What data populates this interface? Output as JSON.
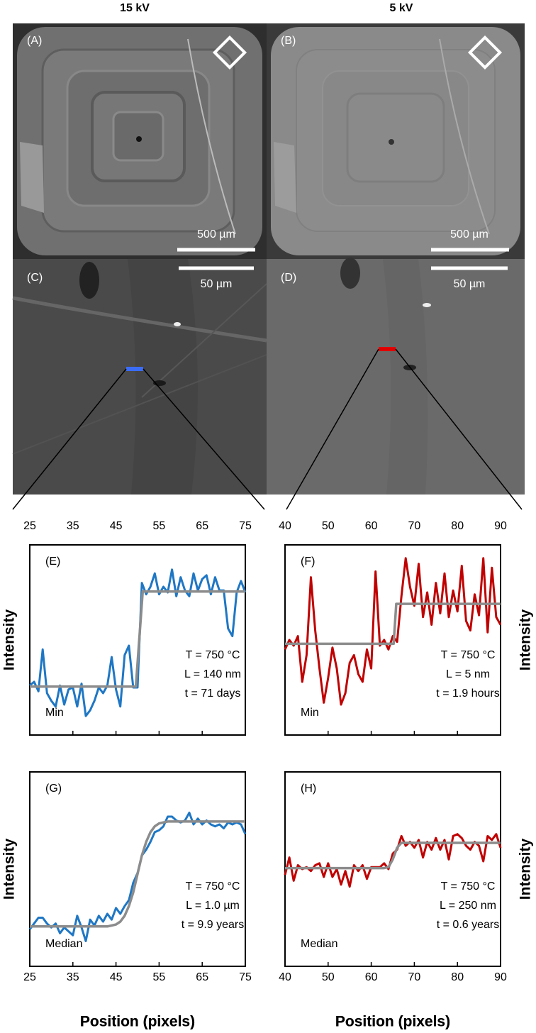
{
  "figure": {
    "column_titles": [
      "15 kV",
      "5 kV"
    ]
  },
  "images": [
    {
      "panel": "(A)",
      "scale_bar": "500 µm"
    },
    {
      "panel": "(B)",
      "scale_bar": "500 µm"
    },
    {
      "panel": "(C)",
      "scale_bar": "50 µm"
    },
    {
      "panel": "(D)",
      "scale_bar": "50 µm"
    }
  ],
  "chart_data": [
    {
      "type": "line",
      "panel": "(E)",
      "xlabel": "Position (pixels)",
      "ylabel": "Intensity",
      "method": "Min",
      "annotations": [
        "T = 750 °C",
        "L = 140 nm",
        "t = 71 days"
      ],
      "xlim": [
        25,
        75
      ],
      "xticks": [
        25,
        35,
        45,
        55,
        65,
        75
      ],
      "ylim": [
        0,
        10
      ],
      "xaxis_side": "top",
      "ylabel_side": "left",
      "x": [
        25,
        26,
        27,
        28,
        29,
        30,
        31,
        32,
        33,
        34,
        35,
        36,
        37,
        38,
        39,
        40,
        41,
        42,
        43,
        44,
        45,
        46,
        47,
        48,
        49,
        50,
        51,
        52,
        53,
        54,
        55,
        56,
        57,
        58,
        59,
        60,
        61,
        62,
        63,
        64,
        65,
        66,
        67,
        68,
        69,
        70,
        71,
        72,
        73,
        74,
        75
      ],
      "series": [
        {
          "color": "#1f77c4",
          "values": [
            2.6,
            2.8,
            2.3,
            4.5,
            2.2,
            1.8,
            1.5,
            2.6,
            1.6,
            2.4,
            2.5,
            1.5,
            2.7,
            1.0,
            1.3,
            1.8,
            2.5,
            2.2,
            2.6,
            4.1,
            2.4,
            1.5,
            4.2,
            4.7,
            2.5,
            2.5,
            8.0,
            7.4,
            7.8,
            8.5,
            7.4,
            7.8,
            7.5,
            8.7,
            7.3,
            8.3,
            7.6,
            7.3,
            8.5,
            7.6,
            8.2,
            8.4,
            7.4,
            8.3,
            7.6,
            7.6,
            5.6,
            5.2,
            7.5,
            8.1,
            7.5
          ]
        },
        {
          "color": "#8c8c8c",
          "x": [
            25,
            49.6,
            51.2,
            75
          ],
          "values": [
            2.55,
            2.55,
            7.55,
            7.55
          ]
        }
      ]
    },
    {
      "type": "line",
      "panel": "(F)",
      "xlabel": "Position (pixels)",
      "ylabel": "Intensity",
      "method": "Min",
      "annotations": [
        "T = 750 °C",
        "L = 5 nm",
        "t = 1.9 hours"
      ],
      "xlim": [
        40,
        90
      ],
      "xticks": [
        40,
        50,
        60,
        70,
        80,
        90
      ],
      "ylim": [
        0,
        10
      ],
      "xaxis_side": "top",
      "ylabel_side": "right",
      "x": [
        40,
        41,
        42,
        43,
        44,
        45,
        46,
        47,
        48,
        49,
        50,
        51,
        52,
        53,
        54,
        55,
        56,
        57,
        58,
        59,
        60,
        61,
        62,
        63,
        64,
        65,
        66,
        67,
        68,
        69,
        70,
        71,
        72,
        73,
        74,
        75,
        76,
        77,
        78,
        79,
        80,
        81,
        82,
        83,
        84,
        85,
        86,
        87,
        88,
        89,
        90
      ],
      "series": [
        {
          "color": "#c00000",
          "values": [
            4.5,
            5.0,
            4.7,
            5.2,
            2.8,
            4.2,
            8.3,
            5.5,
            3.5,
            1.7,
            3.0,
            4.6,
            3.5,
            1.6,
            2.2,
            3.8,
            4.2,
            3.2,
            2.8,
            4.5,
            3.5,
            8.6,
            4.7,
            5.0,
            4.5,
            5.2,
            4.9,
            7.3,
            9.3,
            7.8,
            6.8,
            9.0,
            6.2,
            7.5,
            5.8,
            8.0,
            6.4,
            8.5,
            6.2,
            7.6,
            6.5,
            8.9,
            6.0,
            5.5,
            7.4,
            6.3,
            9.3,
            5.4,
            8.8,
            6.2,
            5.8
          ]
        },
        {
          "color": "#8c8c8c",
          "x": [
            40,
            65.2,
            65.8,
            90
          ],
          "values": [
            4.8,
            4.8,
            6.9,
            6.9
          ]
        }
      ]
    },
    {
      "type": "line",
      "panel": "(G)",
      "xlabel": "Position (pixels)",
      "ylabel": "Intensity",
      "method": "Median",
      "annotations": [
        "T = 750 °C",
        "L = 1.0 µm",
        "t = 9.9 years"
      ],
      "xlim": [
        25,
        75
      ],
      "xticks": [
        25,
        35,
        45,
        55,
        65,
        75
      ],
      "ylim": [
        0,
        10
      ],
      "xaxis_side": "bottom",
      "ylabel_side": "left",
      "x": [
        25,
        26,
        27,
        28,
        29,
        30,
        31,
        32,
        33,
        34,
        35,
        36,
        37,
        38,
        39,
        40,
        41,
        42,
        43,
        44,
        45,
        46,
        47,
        48,
        49,
        50,
        51,
        52,
        53,
        54,
        55,
        56,
        57,
        58,
        59,
        60,
        61,
        62,
        63,
        64,
        65,
        66,
        67,
        68,
        69,
        70,
        71,
        72,
        73,
        74,
        75
      ],
      "series": [
        {
          "color": "#1f77c4",
          "values": [
            1.9,
            2.2,
            2.5,
            2.5,
            2.2,
            2.0,
            2.2,
            1.7,
            2.0,
            1.8,
            1.6,
            2.6,
            2.0,
            1.3,
            2.4,
            2.1,
            2.6,
            2.3,
            2.7,
            2.4,
            3.0,
            2.7,
            3.1,
            3.4,
            4.3,
            4.8,
            5.7,
            6.0,
            6.4,
            6.9,
            7.0,
            7.2,
            7.7,
            7.7,
            7.5,
            7.4,
            7.5,
            7.9,
            7.3,
            7.6,
            7.3,
            7.5,
            7.3,
            7.2,
            7.3,
            7.1,
            7.4,
            7.3,
            7.4,
            7.3,
            6.8
          ]
        },
        {
          "color": "#8c8c8c",
          "x": [
            25,
            43,
            44,
            45,
            46,
            47,
            48,
            49,
            50,
            51,
            52,
            53,
            54,
            55,
            56,
            57,
            75
          ],
          "values": [
            2.05,
            2.05,
            2.1,
            2.15,
            2.3,
            2.6,
            3.1,
            3.8,
            4.75,
            5.7,
            6.4,
            6.9,
            7.2,
            7.35,
            7.4,
            7.45,
            7.45
          ]
        }
      ]
    },
    {
      "type": "line",
      "panel": "(H)",
      "xlabel": "Position (pixels)",
      "ylabel": "Intensity",
      "method": "Median",
      "annotations": [
        "T = 750 °C",
        "L = 250 nm",
        "t = 0.6 years"
      ],
      "xlim": [
        40,
        90
      ],
      "xticks": [
        40,
        50,
        60,
        70,
        80,
        90
      ],
      "ylim": [
        0,
        10
      ],
      "xaxis_side": "bottom",
      "ylabel_side": "right",
      "x": [
        40,
        41,
        42,
        43,
        44,
        45,
        46,
        47,
        48,
        49,
        50,
        51,
        52,
        53,
        54,
        55,
        56,
        57,
        58,
        59,
        60,
        61,
        62,
        63,
        64,
        65,
        66,
        67,
        68,
        69,
        70,
        71,
        72,
        73,
        74,
        75,
        76,
        77,
        78,
        79,
        80,
        81,
        82,
        83,
        84,
        85,
        86,
        87,
        88,
        89,
        90
      ],
      "series": [
        {
          "color": "#c00000",
          "values": [
            4.7,
            5.6,
            4.4,
            5.2,
            5.0,
            5.1,
            4.9,
            5.2,
            5.3,
            4.6,
            5.3,
            4.6,
            5.0,
            4.2,
            4.9,
            4.1,
            5.2,
            4.9,
            5.2,
            4.5,
            5.1,
            5.1,
            5.1,
            5.3,
            5.0,
            5.8,
            6.0,
            6.7,
            6.2,
            6.4,
            6.1,
            6.5,
            5.6,
            6.4,
            6.0,
            6.6,
            6.0,
            6.5,
            5.5,
            6.7,
            6.8,
            6.6,
            6.2,
            6.0,
            6.4,
            6.2,
            5.4,
            6.7,
            6.5,
            6.8,
            6.1
          ]
        },
        {
          "color": "#8c8c8c",
          "x": [
            40,
            63,
            64,
            65,
            66,
            67,
            90
          ],
          "values": [
            5.05,
            5.05,
            5.1,
            5.5,
            6.1,
            6.35,
            6.35
          ]
        }
      ]
    }
  ]
}
